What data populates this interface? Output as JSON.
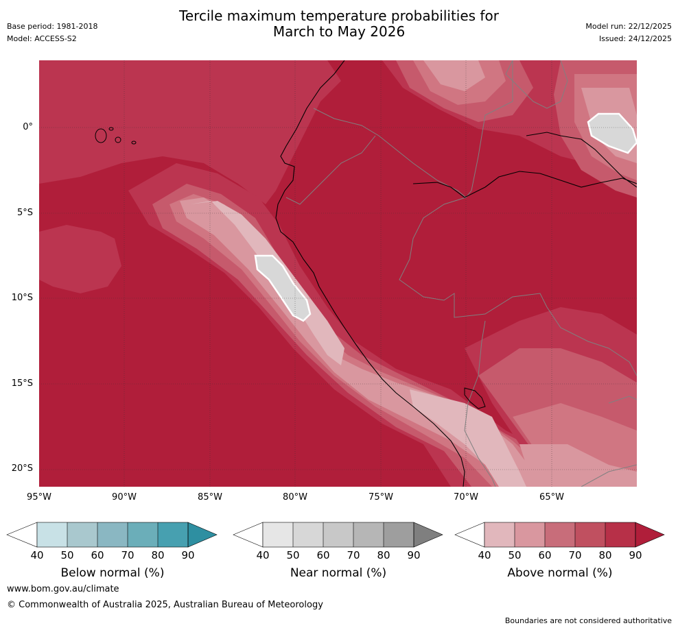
{
  "header": {
    "title_line1": "Tercile maximum temperature probabilities for",
    "title_line2": "March to May 2026",
    "base_period": "Base period: 1981-2018",
    "model": "Model: ACCESS-S2",
    "model_run": "Model run: 22/12/2025",
    "issued": "Issued: 24/12/2025"
  },
  "map": {
    "lat_labels": [
      "0°",
      "5°S",
      "10°S",
      "15°S",
      "20°S"
    ],
    "lon_labels": [
      "95°W",
      "90°W",
      "85°W",
      "80°W",
      "75°W",
      "70°W",
      "65°W"
    ],
    "colors": {
      "above_90": "#b01e3a",
      "above_80": "#bb3550",
      "above_70": "#c65a6c",
      "above_60": "#d07682",
      "above_50": "#d9979f",
      "above_40": "#e1b7bc",
      "near_60": "#d8d8d8",
      "coast": "#000000",
      "border": "#808080"
    }
  },
  "colorbars": [
    {
      "label": "Below normal (%)",
      "ticks": [
        "40",
        "50",
        "60",
        "70",
        "80",
        "90"
      ],
      "colors": [
        "#ffffff",
        "#c8e1e6",
        "#a9c8ce",
        "#8ab7c2",
        "#6baeb9",
        "#47a0b0",
        "#2e8fa1"
      ]
    },
    {
      "label": "Near normal (%)",
      "ticks": [
        "40",
        "50",
        "60",
        "70",
        "80",
        "90"
      ],
      "colors": [
        "#ffffff",
        "#e6e6e6",
        "#d7d7d7",
        "#c8c8c8",
        "#b6b6b6",
        "#9e9e9e",
        "#7f7f7f"
      ]
    },
    {
      "label": "Above normal (%)",
      "ticks": [
        "40",
        "50",
        "60",
        "70",
        "80",
        "90"
      ],
      "colors": [
        "#ffffff",
        "#e1b7bc",
        "#d9979f",
        "#c86d7a",
        "#c05060",
        "#b73048",
        "#b01e3a"
      ]
    }
  ],
  "footer": {
    "website": "www.bom.gov.au/climate",
    "copyright": "© Commonwealth of Australia 2025, Australian Bureau of Meteorology",
    "disclaimer": "Boundaries are not considered authoritative"
  }
}
